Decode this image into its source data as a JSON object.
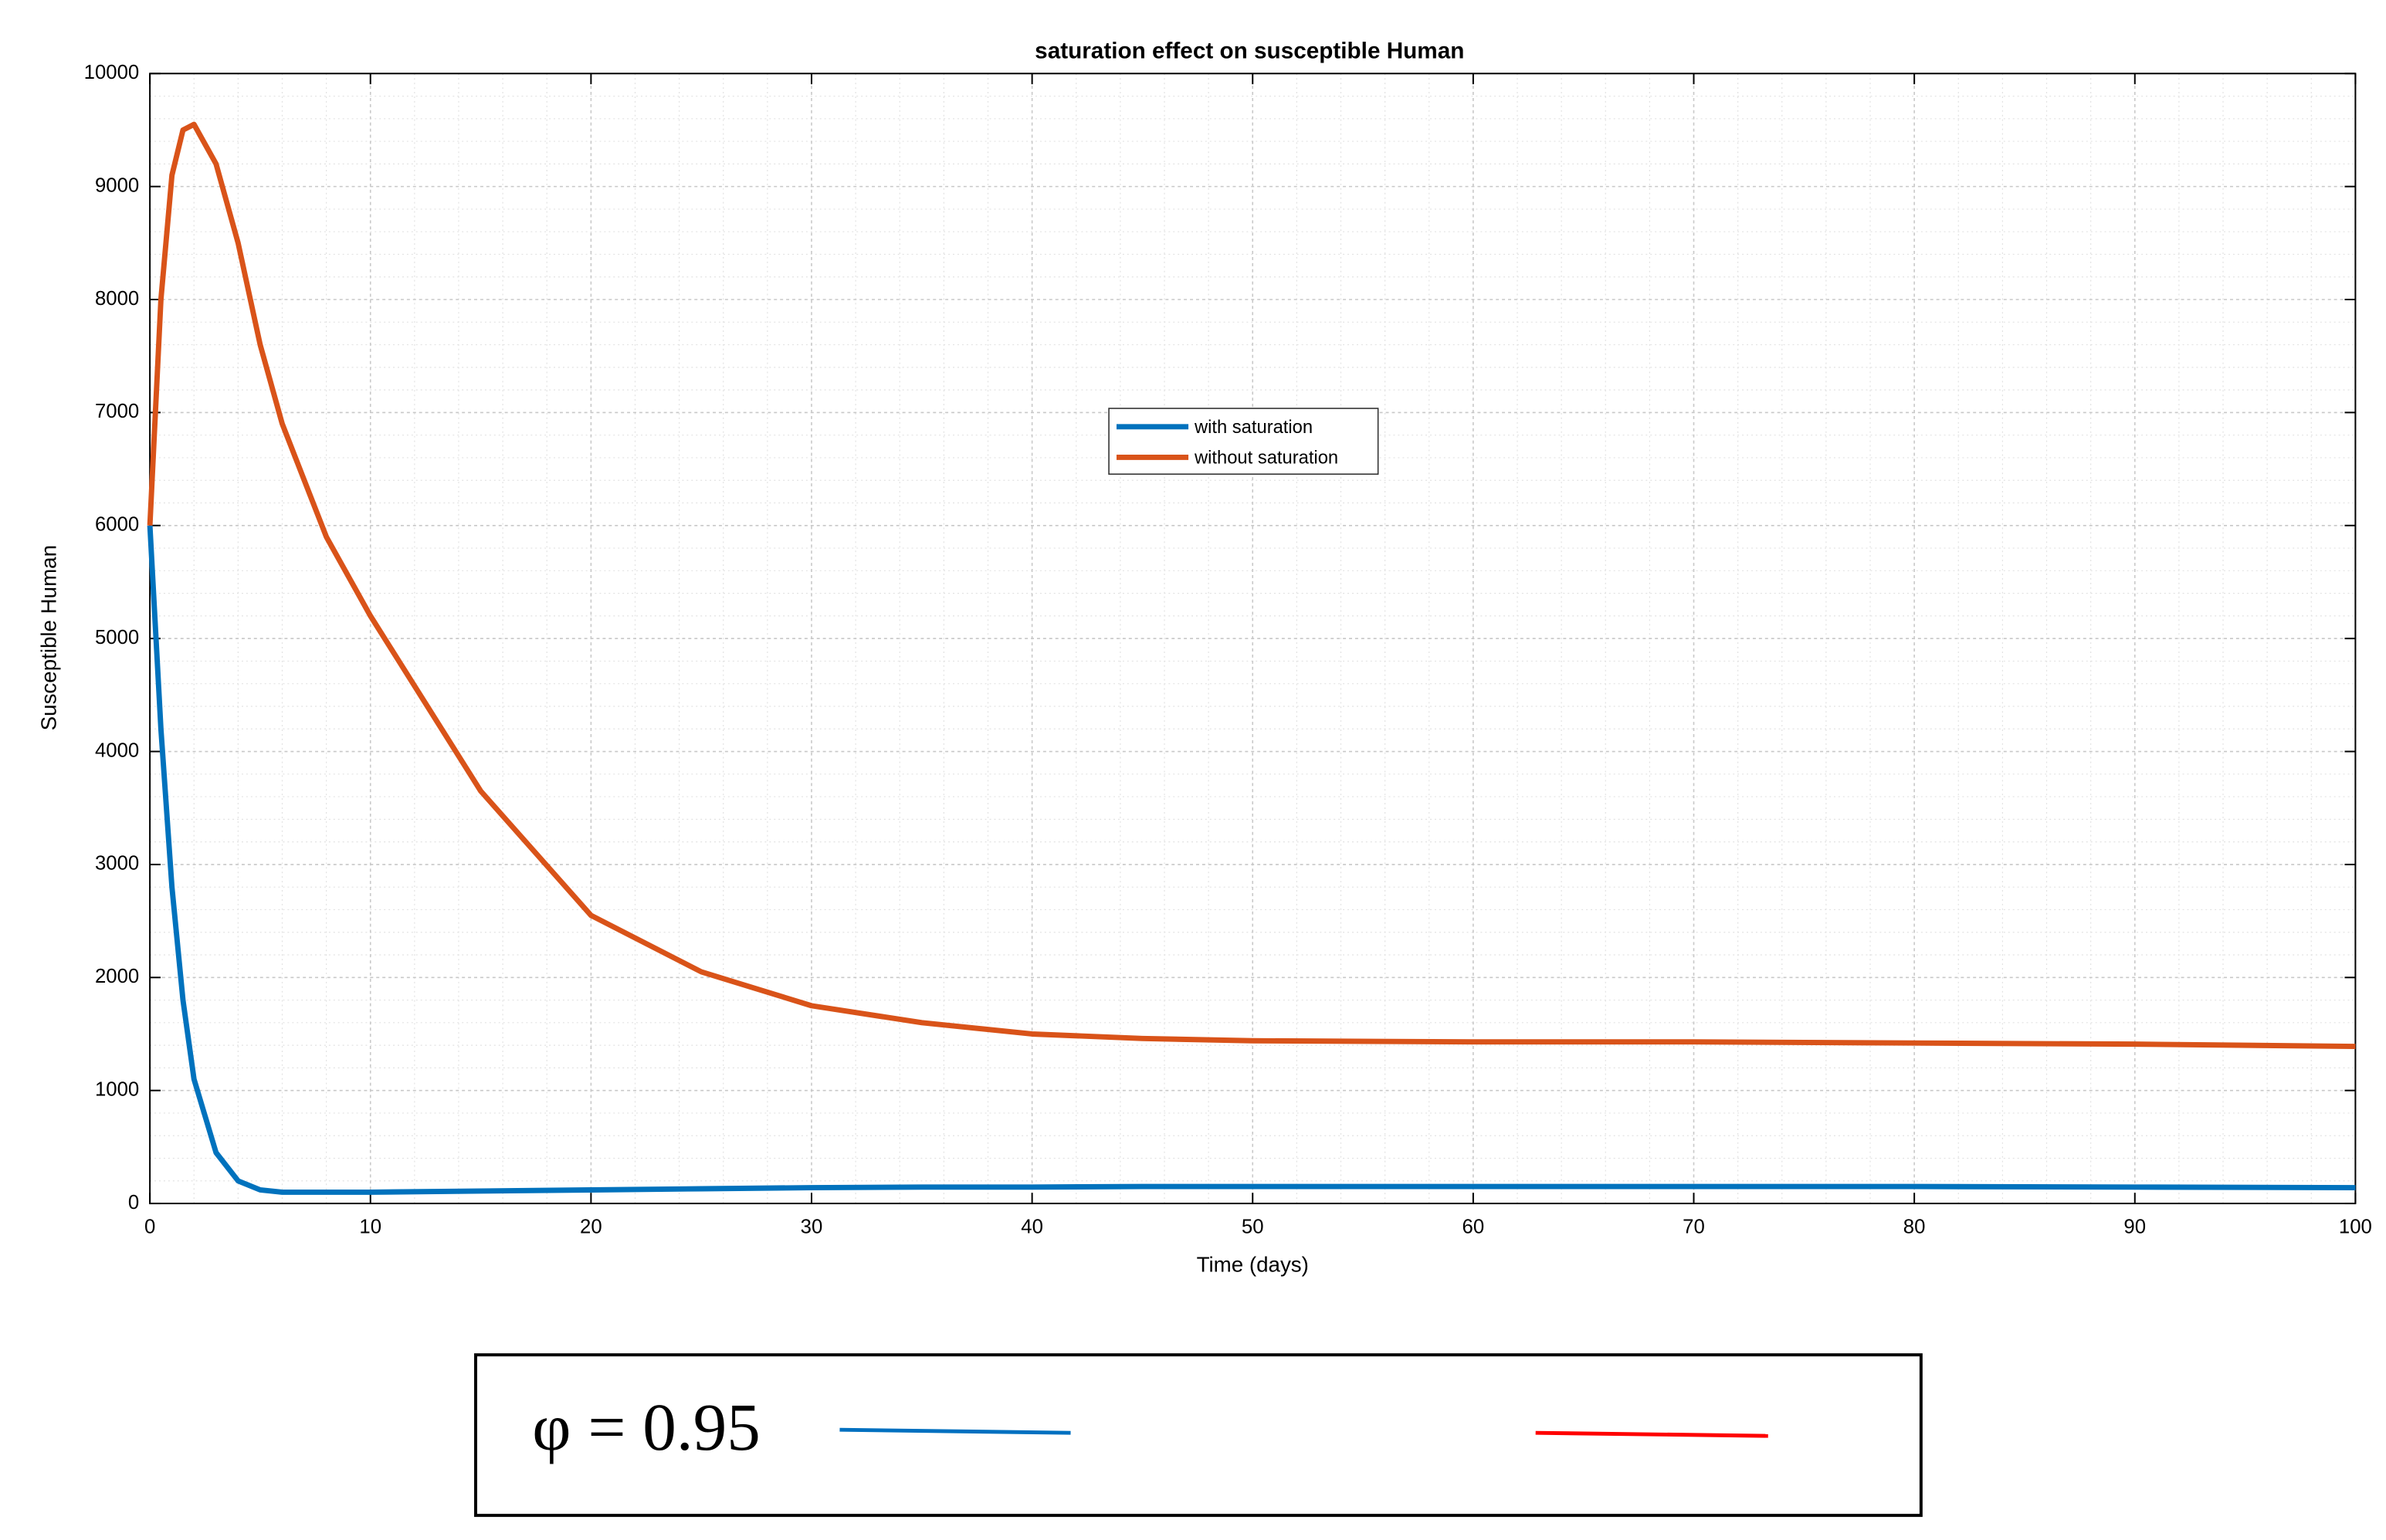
{
  "chart_data": {
    "type": "line",
    "title": "saturation effect on susceptible Human",
    "x_label": "Time (days)",
    "y_label": "Susceptible Human",
    "x": [
      0,
      0.5,
      1,
      1.5,
      2,
      3,
      4,
      5,
      6,
      8,
      10,
      15,
      20,
      25,
      30,
      35,
      40,
      45,
      50,
      60,
      70,
      80,
      90,
      100
    ],
    "series": [
      {
        "name": "with saturation",
        "color": "#0072bd",
        "values": [
          6000,
          4200,
          2800,
          1800,
          1100,
          450,
          200,
          120,
          100,
          100,
          100,
          110,
          120,
          130,
          140,
          145,
          145,
          150,
          150,
          150,
          150,
          150,
          145,
          140
        ]
      },
      {
        "name": "without saturation",
        "color": "#d95319",
        "values": [
          6000,
          8000,
          9100,
          9500,
          9550,
          9200,
          8500,
          7600,
          6900,
          5900,
          5200,
          3650,
          2550,
          2050,
          1750,
          1600,
          1500,
          1460,
          1440,
          1430,
          1430,
          1420,
          1410,
          1390
        ]
      }
    ],
    "xlim": [
      0,
      100
    ],
    "xticks": [
      0,
      10,
      20,
      30,
      40,
      50,
      60,
      70,
      80,
      90,
      100
    ],
    "ylim": [
      0,
      10000
    ],
    "yticks": [
      0,
      1000,
      2000,
      3000,
      4000,
      5000,
      6000,
      7000,
      8000,
      9000,
      10000
    ],
    "grid": true,
    "legend": "center-top"
  },
  "annotation": "φ = 0.95"
}
